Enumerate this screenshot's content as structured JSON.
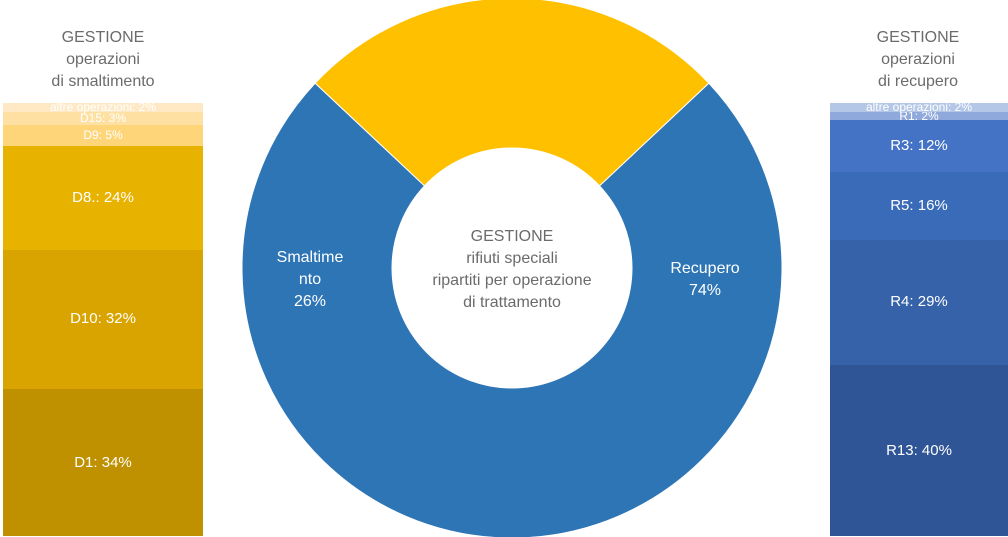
{
  "left_title": {
    "line1": "GESTIONE",
    "line2": "operazioni",
    "line3": "di smaltimento"
  },
  "right_title": {
    "line1": "GESTIONE",
    "line2": "operazioni",
    "line3": "di recupero"
  },
  "center": {
    "line1": "GESTIONE",
    "line2": "rifiuti speciali",
    "line3": "ripartiti per operazione",
    "line4": "di trattamento"
  },
  "chart_data": [
    {
      "type": "pie",
      "subtype": "donut",
      "title": "GESTIONE rifiuti speciali ripartiti per operazione di trattamento",
      "categories": [
        "Recupero",
        "Smaltimento"
      ],
      "values": [
        74,
        26
      ],
      "display_labels": [
        "Recupero",
        "Smaltime nto"
      ],
      "value_labels": [
        "74%",
        "26%"
      ],
      "colors": [
        "#2e75b6",
        "#ffc000"
      ]
    },
    {
      "type": "bar",
      "subtype": "100% stacked column",
      "title": "GESTIONE operazioni di smaltimento",
      "categories": [
        "D1",
        "D10",
        "D8",
        "D9",
        "D15",
        "altre operazioni"
      ],
      "values": [
        34,
        32,
        24,
        5,
        3,
        2
      ],
      "labels": [
        "D1: 34%",
        "D10: 32%",
        "D8.: 24%",
        "D9: 5%",
        "D15: 3%",
        "altre operazioni: 2%"
      ],
      "colors": [
        "#bf9000",
        "#d9a400",
        "#e8b200",
        "#ffd57a",
        "#ffe0a3",
        "#ffe9c4"
      ]
    },
    {
      "type": "bar",
      "subtype": "100% stacked column",
      "title": "GESTIONE operazioni di recupero",
      "categories": [
        "R13",
        "R4",
        "R5",
        "R3",
        "R1",
        "altre operazioni"
      ],
      "values": [
        40,
        29,
        16,
        12,
        2,
        2
      ],
      "labels": [
        "R13: 40%",
        "R4: 29%",
        "R5: 16%",
        "R3: 12%",
        "R1: 2%",
        "altre operazioni: 2%"
      ],
      "colors": [
        "#2f5597",
        "#3562a8",
        "#3a6bb8",
        "#4472c4",
        "#8fa9dc",
        "#b4c7e7"
      ]
    }
  ]
}
